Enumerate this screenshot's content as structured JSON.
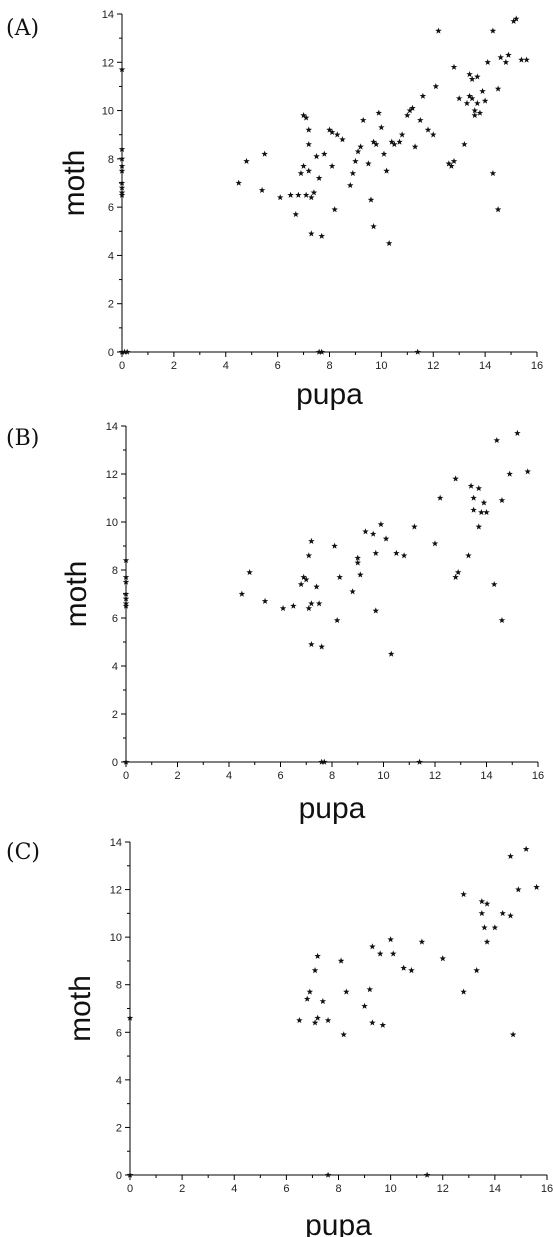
{
  "chart_data": [
    {
      "type": "scatter",
      "panel": "(A)",
      "xlabel": "pupa",
      "ylabel": "moth",
      "xlim": [
        0,
        16
      ],
      "ylim": [
        0,
        14
      ],
      "xticks": [
        0,
        2,
        4,
        6,
        8,
        10,
        12,
        14,
        16
      ],
      "yticks": [
        0,
        2,
        4,
        6,
        8,
        10,
        12,
        14
      ],
      "grid": false,
      "marker": "star",
      "points": [
        [
          0,
          11.7
        ],
        [
          0,
          8.4
        ],
        [
          0,
          8.0
        ],
        [
          0,
          7.7
        ],
        [
          0,
          7.5
        ],
        [
          0,
          7.0
        ],
        [
          0,
          6.8
        ],
        [
          0,
          6.6
        ],
        [
          0,
          6.5
        ],
        [
          0,
          0
        ],
        [
          0.1,
          0
        ],
        [
          0.2,
          0
        ],
        [
          4.5,
          7.0
        ],
        [
          4.8,
          7.9
        ],
        [
          5.4,
          6.7
        ],
        [
          5.5,
          8.2
        ],
        [
          6.1,
          6.4
        ],
        [
          6.5,
          6.5
        ],
        [
          6.7,
          5.7
        ],
        [
          6.8,
          6.5
        ],
        [
          6.9,
          7.4
        ],
        [
          7.0,
          7.7
        ],
        [
          7.0,
          9.8
        ],
        [
          7.1,
          9.7
        ],
        [
          7.1,
          6.5
        ],
        [
          7.2,
          7.5
        ],
        [
          7.2,
          8.6
        ],
        [
          7.2,
          9.2
        ],
        [
          7.3,
          6.4
        ],
        [
          7.3,
          4.9
        ],
        [
          7.4,
          6.6
        ],
        [
          7.5,
          8.1
        ],
        [
          7.6,
          7.2
        ],
        [
          7.7,
          4.8
        ],
        [
          7.6,
          0
        ],
        [
          7.7,
          0
        ],
        [
          7.8,
          8.2
        ],
        [
          8.0,
          9.2
        ],
        [
          8.1,
          9.1
        ],
        [
          8.1,
          7.7
        ],
        [
          8.2,
          5.9
        ],
        [
          8.3,
          9.0
        ],
        [
          8.5,
          8.8
        ],
        [
          8.8,
          6.9
        ],
        [
          8.9,
          7.4
        ],
        [
          9.0,
          7.9
        ],
        [
          9.1,
          8.3
        ],
        [
          9.2,
          8.5
        ],
        [
          9.3,
          9.6
        ],
        [
          9.5,
          7.8
        ],
        [
          9.6,
          6.3
        ],
        [
          9.7,
          8.7
        ],
        [
          9.8,
          8.6
        ],
        [
          9.9,
          9.9
        ],
        [
          9.7,
          5.2
        ],
        [
          10.0,
          9.3
        ],
        [
          10.1,
          8.2
        ],
        [
          10.2,
          7.5
        ],
        [
          10.3,
          4.5
        ],
        [
          10.4,
          8.7
        ],
        [
          10.5,
          8.6
        ],
        [
          10.7,
          8.7
        ],
        [
          10.8,
          9.0
        ],
        [
          11.0,
          9.8
        ],
        [
          11.1,
          10.0
        ],
        [
          11.2,
          10.1
        ],
        [
          11.3,
          8.5
        ],
        [
          11.5,
          9.6
        ],
        [
          11.6,
          10.6
        ],
        [
          11.8,
          9.2
        ],
        [
          12.0,
          9.0
        ],
        [
          12.1,
          11.0
        ],
        [
          12.2,
          13.3
        ],
        [
          11.4,
          0
        ],
        [
          12.6,
          7.8
        ],
        [
          12.7,
          7.7
        ],
        [
          12.8,
          7.9
        ],
        [
          12.8,
          11.8
        ],
        [
          13.0,
          10.5
        ],
        [
          13.2,
          8.6
        ],
        [
          13.3,
          10.3
        ],
        [
          13.4,
          10.6
        ],
        [
          13.4,
          11.5
        ],
        [
          13.5,
          11.3
        ],
        [
          13.5,
          10.5
        ],
        [
          13.6,
          9.8
        ],
        [
          13.6,
          10.0
        ],
        [
          13.7,
          10.3
        ],
        [
          13.7,
          11.4
        ],
        [
          13.8,
          9.9
        ],
        [
          13.9,
          10.8
        ],
        [
          14.0,
          10.4
        ],
        [
          14.1,
          12.0
        ],
        [
          14.3,
          7.4
        ],
        [
          14.3,
          13.3
        ],
        [
          14.5,
          10.9
        ],
        [
          14.5,
          5.9
        ],
        [
          14.6,
          12.2
        ],
        [
          14.8,
          12.0
        ],
        [
          14.9,
          12.3
        ],
        [
          15.1,
          13.7
        ],
        [
          15.2,
          13.8
        ],
        [
          15.4,
          12.1
        ],
        [
          15.6,
          12.1
        ]
      ]
    },
    {
      "type": "scatter",
      "panel": "(B)",
      "xlabel": "pupa",
      "ylabel": "moth",
      "xlim": [
        0,
        16
      ],
      "ylim": [
        0,
        14
      ],
      "xticks": [
        0,
        2,
        4,
        6,
        8,
        10,
        12,
        14,
        16
      ],
      "yticks": [
        0,
        2,
        4,
        6,
        8,
        10,
        12,
        14
      ],
      "grid": false,
      "marker": "star",
      "points": [
        [
          0,
          8.4
        ],
        [
          0,
          7.7
        ],
        [
          0,
          7.5
        ],
        [
          0,
          7.0
        ],
        [
          0,
          6.8
        ],
        [
          0,
          6.6
        ],
        [
          0,
          6.5
        ],
        [
          0,
          0
        ],
        [
          4.5,
          7.0
        ],
        [
          4.8,
          7.9
        ],
        [
          5.4,
          6.7
        ],
        [
          6.1,
          6.4
        ],
        [
          6.5,
          6.5
        ],
        [
          6.8,
          7.4
        ],
        [
          6.9,
          7.7
        ],
        [
          7.0,
          7.6
        ],
        [
          7.1,
          6.4
        ],
        [
          7.1,
          8.6
        ],
        [
          7.2,
          9.2
        ],
        [
          7.2,
          6.6
        ],
        [
          7.2,
          4.9
        ],
        [
          7.4,
          7.3
        ],
        [
          7.5,
          6.6
        ],
        [
          7.6,
          4.8
        ],
        [
          7.6,
          0
        ],
        [
          7.7,
          0
        ],
        [
          8.1,
          9.0
        ],
        [
          8.2,
          5.9
        ],
        [
          8.3,
          7.7
        ],
        [
          8.8,
          7.1
        ],
        [
          9.0,
          8.3
        ],
        [
          9.0,
          8.5
        ],
        [
          9.1,
          7.8
        ],
        [
          9.3,
          9.6
        ],
        [
          9.6,
          9.5
        ],
        [
          9.7,
          8.7
        ],
        [
          9.7,
          6.3
        ],
        [
          9.9,
          9.9
        ],
        [
          10.1,
          9.3
        ],
        [
          10.3,
          4.5
        ],
        [
          10.5,
          8.7
        ],
        [
          10.8,
          8.6
        ],
        [
          11.2,
          9.8
        ],
        [
          11.4,
          0
        ],
        [
          12.0,
          9.1
        ],
        [
          12.2,
          11.0
        ],
        [
          12.8,
          11.8
        ],
        [
          12.8,
          7.7
        ],
        [
          12.9,
          7.9
        ],
        [
          13.3,
          8.6
        ],
        [
          13.4,
          11.5
        ],
        [
          13.5,
          11.0
        ],
        [
          13.5,
          10.5
        ],
        [
          13.7,
          9.8
        ],
        [
          13.7,
          11.4
        ],
        [
          13.8,
          10.4
        ],
        [
          13.9,
          10.8
        ],
        [
          14.0,
          10.4
        ],
        [
          14.3,
          7.4
        ],
        [
          14.4,
          13.4
        ],
        [
          14.6,
          10.9
        ],
        [
          14.6,
          5.9
        ],
        [
          14.9,
          12.0
        ],
        [
          15.2,
          13.7
        ],
        [
          15.6,
          12.1
        ]
      ]
    },
    {
      "type": "scatter",
      "panel": "(C)",
      "xlabel": "pupa",
      "ylabel": "moth",
      "xlim": [
        0,
        16
      ],
      "ylim": [
        0,
        14
      ],
      "xticks": [
        0,
        2,
        4,
        6,
        8,
        10,
        12,
        14,
        16
      ],
      "yticks": [
        0,
        2,
        4,
        6,
        8,
        10,
        12,
        14
      ],
      "grid": false,
      "marker": "star",
      "points": [
        [
          0,
          6.6
        ],
        [
          0,
          0
        ],
        [
          6.5,
          6.5
        ],
        [
          6.8,
          7.4
        ],
        [
          6.9,
          7.7
        ],
        [
          7.1,
          6.4
        ],
        [
          7.1,
          8.6
        ],
        [
          7.2,
          9.2
        ],
        [
          7.2,
          6.6
        ],
        [
          7.4,
          7.3
        ],
        [
          7.6,
          6.5
        ],
        [
          7.6,
          0
        ],
        [
          8.1,
          9.0
        ],
        [
          8.2,
          5.9
        ],
        [
          8.3,
          7.7
        ],
        [
          9.0,
          7.1
        ],
        [
          9.2,
          7.8
        ],
        [
          9.3,
          9.6
        ],
        [
          9.3,
          6.4
        ],
        [
          9.6,
          9.3
        ],
        [
          9.7,
          6.3
        ],
        [
          10.0,
          9.9
        ],
        [
          10.1,
          9.3
        ],
        [
          10.5,
          8.7
        ],
        [
          10.8,
          8.6
        ],
        [
          11.2,
          9.8
        ],
        [
          11.4,
          0
        ],
        [
          12.0,
          9.1
        ],
        [
          12.8,
          11.8
        ],
        [
          12.8,
          7.7
        ],
        [
          13.3,
          8.6
        ],
        [
          13.5,
          11.5
        ],
        [
          13.5,
          11.0
        ],
        [
          13.6,
          10.4
        ],
        [
          13.7,
          9.8
        ],
        [
          13.7,
          11.4
        ],
        [
          14.0,
          10.4
        ],
        [
          14.3,
          11.0
        ],
        [
          14.6,
          13.4
        ],
        [
          14.6,
          10.9
        ],
        [
          14.7,
          5.9
        ],
        [
          14.9,
          12.0
        ],
        [
          15.2,
          13.7
        ],
        [
          15.6,
          12.1
        ]
      ]
    }
  ]
}
